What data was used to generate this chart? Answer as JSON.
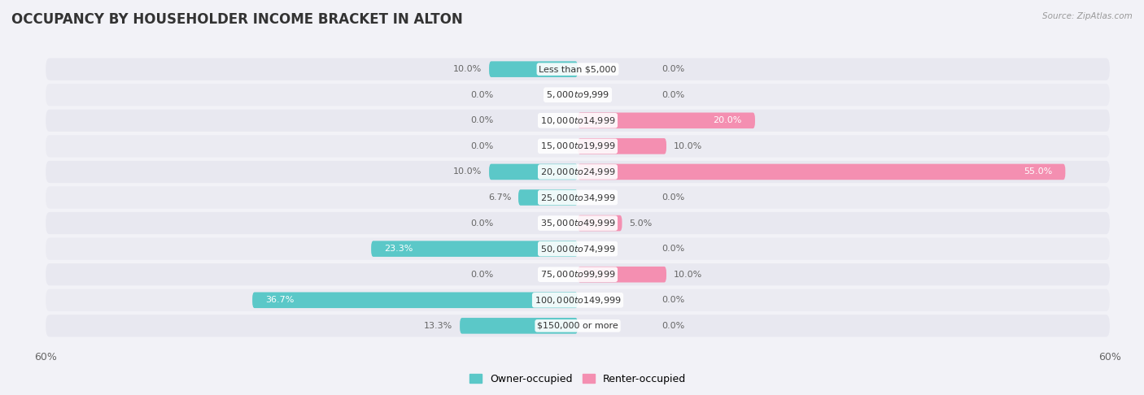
{
  "title": "OCCUPANCY BY HOUSEHOLDER INCOME BRACKET IN ALTON",
  "source": "Source: ZipAtlas.com",
  "categories": [
    "Less than $5,000",
    "$5,000 to $9,999",
    "$10,000 to $14,999",
    "$15,000 to $19,999",
    "$20,000 to $24,999",
    "$25,000 to $34,999",
    "$35,000 to $49,999",
    "$50,000 to $74,999",
    "$75,000 to $99,999",
    "$100,000 to $149,999",
    "$150,000 or more"
  ],
  "owner_values": [
    10.0,
    0.0,
    0.0,
    0.0,
    10.0,
    6.7,
    0.0,
    23.3,
    0.0,
    36.7,
    13.3
  ],
  "renter_values": [
    0.0,
    0.0,
    20.0,
    10.0,
    55.0,
    0.0,
    5.0,
    0.0,
    10.0,
    0.0,
    0.0
  ],
  "owner_color": "#5bc8c8",
  "renter_color": "#f48fb1",
  "owner_label": "Owner-occupied",
  "renter_label": "Renter-occupied",
  "xlim": 60.0,
  "bg_color": "#f2f2f7",
  "bar_bg_color_odd": "#e8e8f0",
  "bar_bg_color_even": "#ebebf2",
  "title_fontsize": 12,
  "bar_height": 0.62,
  "label_color_inside": "#ffffff",
  "label_color_outside": "#666666",
  "value_fontsize": 8.0,
  "cat_fontsize": 8.0
}
